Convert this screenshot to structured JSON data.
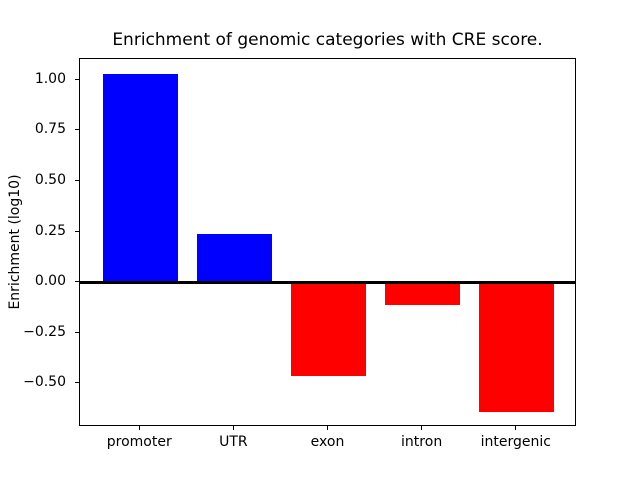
{
  "chart_data": {
    "type": "bar",
    "title": "Enrichment of genomic categories with CRE score.",
    "xlabel": "",
    "ylabel": "Enrichment (log10)",
    "categories": [
      "promoter",
      "UTR",
      "exon",
      "intron",
      "intergenic"
    ],
    "values": [
      1.03,
      0.24,
      -0.46,
      -0.11,
      -0.64
    ],
    "yticks": [
      {
        "value": 1.0,
        "label": "1.00"
      },
      {
        "value": 0.75,
        "label": "0.75"
      },
      {
        "value": 0.5,
        "label": "0.50"
      },
      {
        "value": 0.25,
        "label": "0.25"
      },
      {
        "value": 0.0,
        "label": "0.00"
      },
      {
        "value": -0.25,
        "label": "−0.25"
      },
      {
        "value": -0.5,
        "label": "−0.50"
      }
    ],
    "ylim": [
      -0.713,
      1.105
    ],
    "xlim": [
      -0.64,
      4.64
    ],
    "bar_width": 0.8,
    "zero_line": true,
    "grid": false,
    "legend": null,
    "colors": {
      "positive": "#0000ff",
      "negative": "#ff0000",
      "axis": "#000000",
      "background": "#ffffff"
    }
  }
}
